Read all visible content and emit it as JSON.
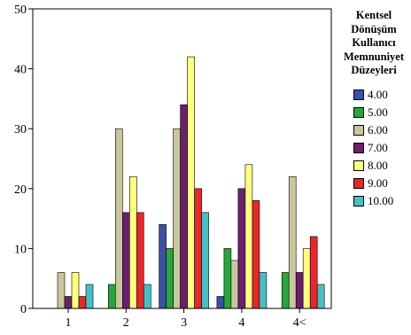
{
  "chart_data": {
    "type": "bar",
    "categories": [
      "1",
      "2",
      "3",
      "4",
      "4<"
    ],
    "series": [
      {
        "name": "4.00",
        "color": "#3c50a8",
        "values": [
          0,
          0,
          14,
          2,
          0
        ]
      },
      {
        "name": "5.00",
        "color": "#27a63c",
        "values": [
          0,
          4,
          10,
          10,
          6
        ]
      },
      {
        "name": "6.00",
        "color": "#c9c79a",
        "values": [
          6,
          30,
          30,
          8,
          22
        ]
      },
      {
        "name": "7.00",
        "color": "#6b1f6e",
        "values": [
          2,
          16,
          34,
          20,
          6
        ]
      },
      {
        "name": "8.00",
        "color": "#ffff7e",
        "values": [
          6,
          22,
          42,
          24,
          10
        ]
      },
      {
        "name": "9.00",
        "color": "#e8262b",
        "values": [
          2,
          16,
          20,
          18,
          12
        ]
      },
      {
        "name": "10.00",
        "color": "#45c1c5",
        "values": [
          4,
          4,
          16,
          6,
          4
        ]
      }
    ],
    "ylim": [
      0,
      50
    ],
    "yticks": [
      0,
      10,
      20,
      30,
      40,
      50
    ],
    "grid": false,
    "background": "#ffffff",
    "legend": {
      "title_lines": [
        "Kentsel",
        "Dönüşüm",
        "Kullanıcı",
        "Memnuniyet",
        "Düzeyleri"
      ],
      "placement": "right"
    }
  }
}
